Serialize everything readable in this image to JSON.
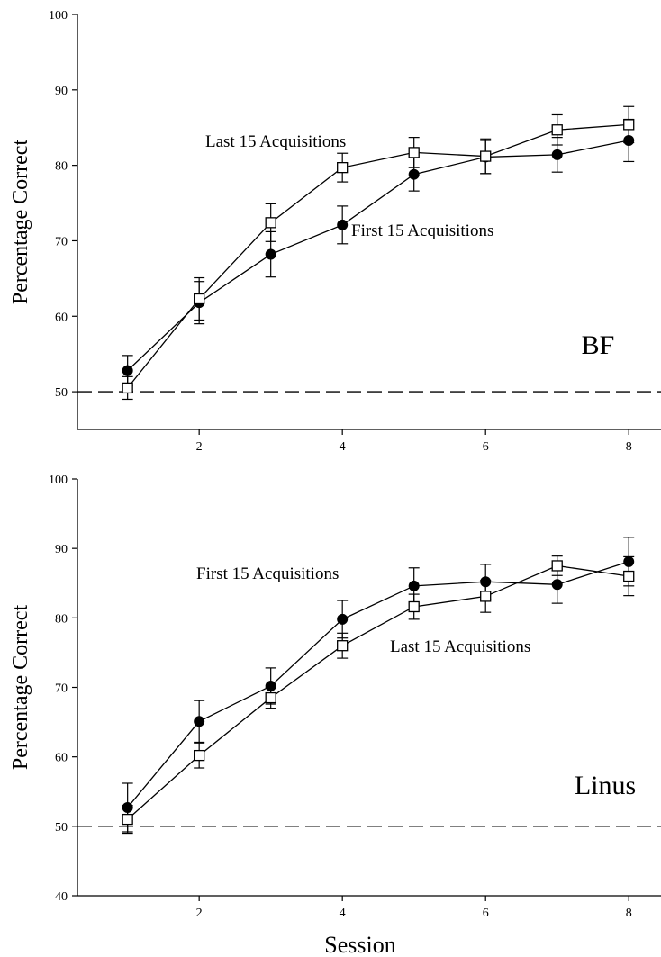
{
  "chart_data": [
    {
      "type": "line",
      "panel_label": "BF",
      "ylabel": "Percentage Correct",
      "xlabel": "",
      "x": [
        1,
        2,
        3,
        4,
        5,
        6,
        7,
        8
      ],
      "xlim": [
        0.3,
        8.45
      ],
      "ylim": [
        45,
        100
      ],
      "x_ticks": [
        2,
        4,
        6,
        8
      ],
      "y_ticks": [
        50,
        60,
        70,
        80,
        90,
        100
      ],
      "reference_line": {
        "y": 50,
        "style": "dashed"
      },
      "series": [
        {
          "name": "First 15 Acquisitions",
          "marker": "filled-circle",
          "values": [
            52.8,
            61.8,
            68.2,
            72.1,
            78.8,
            81.1,
            81.4,
            83.3
          ],
          "errors": [
            2.0,
            2.8,
            3.0,
            2.5,
            2.2,
            2.2,
            2.3,
            2.8
          ]
        },
        {
          "name": "Last 15 Acquisitions",
          "marker": "open-square",
          "values": [
            50.5,
            62.3,
            72.4,
            79.7,
            81.7,
            81.2,
            84.7,
            85.4
          ],
          "errors": [
            1.5,
            2.8,
            2.5,
            1.9,
            2.0,
            2.3,
            2.0,
            2.4
          ]
        }
      ]
    },
    {
      "type": "line",
      "panel_label": "Linus",
      "ylabel": "Percentage Correct",
      "xlabel": "Session",
      "x": [
        1,
        2,
        3,
        4,
        5,
        6,
        7,
        8
      ],
      "xlim": [
        0.3,
        8.45
      ],
      "ylim": [
        40,
        100
      ],
      "x_ticks": [
        2,
        4,
        6,
        8
      ],
      "y_ticks": [
        40,
        50,
        60,
        70,
        80,
        90,
        100
      ],
      "reference_line": {
        "y": 50,
        "style": "dashed"
      },
      "series": [
        {
          "name": "First 15 Acquisitions",
          "marker": "filled-circle",
          "values": [
            52.7,
            65.1,
            70.2,
            79.8,
            84.6,
            85.2,
            84.8,
            88.1
          ],
          "errors": [
            3.5,
            3.0,
            2.6,
            2.7,
            2.6,
            2.5,
            2.7,
            3.5
          ]
        },
        {
          "name": "Last 15 Acquisitions",
          "marker": "open-square",
          "values": [
            51.0,
            60.2,
            68.5,
            76.0,
            81.6,
            83.1,
            87.5,
            86.0
          ],
          "errors": [
            2.0,
            1.8,
            1.5,
            1.8,
            1.8,
            2.3,
            1.4,
            2.8
          ]
        }
      ]
    }
  ]
}
